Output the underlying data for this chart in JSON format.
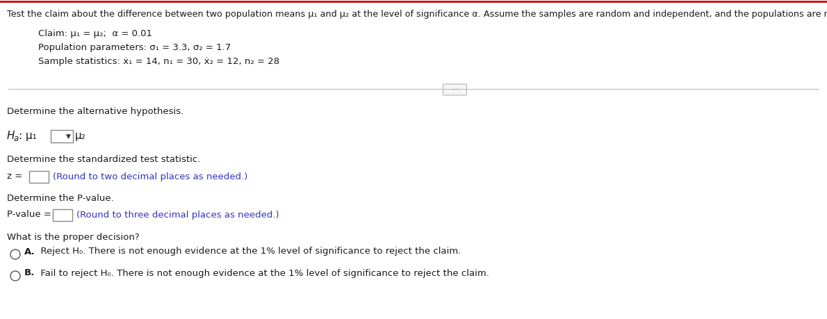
{
  "header_text": "Test the claim about the difference between two population means μ₁ and μ₂ at the level of significance α. Assume the samples are random and independent, and the populations are normally distributed.",
  "claim_line": "Claim: μ₁ = μ₂;  α = 0.01",
  "param_line": "Population parameters: σ₁ = 3.3, σ₂ = 1.7",
  "sample_line": "Sample statistics: ẋ₁ = 14, n₁ = 30, ẋ₂ = 12, n₂ = 28",
  "section1_title": "Determine the alternative hypothesis.",
  "ha_pre": "H",
  "ha_a": "a",
  "ha_mu1": ": μ₁",
  "ha_mu2": "μ₂",
  "section2_title": "Determine the standardized test statistic.",
  "z_label": "z = ",
  "z_hint": "(Round to two decimal places as needed.)",
  "section3_title": "Determine the P-value.",
  "pval_label": "P-value = ",
  "pval_hint": "(Round to three decimal places as needed.)",
  "section4_title": "What is the proper decision?",
  "optionA_label": "A.",
  "optionA_text": "  Reject H₀. There is not enough evidence at the 1% level of significance to reject the claim.",
  "optionB_label": "B.",
  "optionB_text": "  Fail to reject H₀. There is not enough evidence at the 1% level of significance to reject the claim.",
  "bg_color": "#ffffff",
  "text_color": "#1a1a1a",
  "hint_color": "#3333bb",
  "header_fontsize": 9.2,
  "body_fontsize": 9.5,
  "fig_width": 11.9,
  "fig_height": 4.59,
  "dpi": 100,
  "divider_color": "#bbbbbb",
  "box_edge_color": "#888888",
  "dropdown_bg": "#f0f0f0",
  "circle_color": "#555555"
}
